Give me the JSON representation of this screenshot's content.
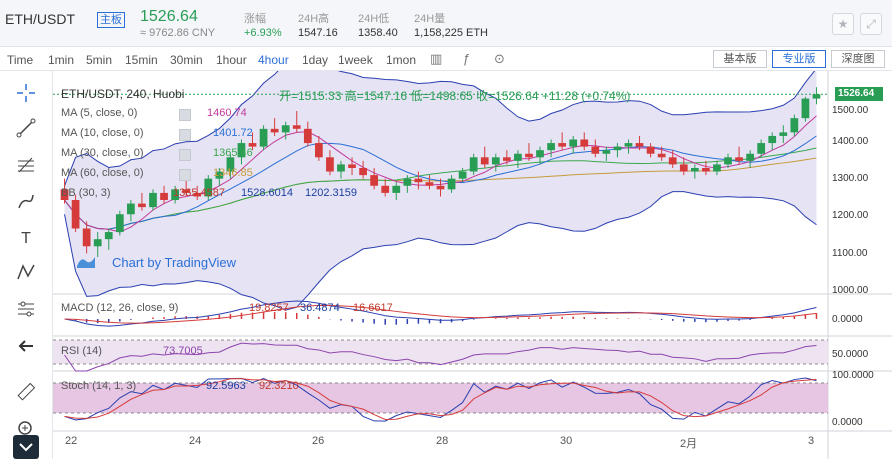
{
  "header": {
    "pair": "ETH/USDT",
    "tag": "主板",
    "price": "1526.64",
    "cny": "≈ 9762.86 CNY",
    "stats": [
      {
        "label": "涨幅",
        "value": "+6.93%"
      },
      {
        "label": "24H高",
        "value": "1547.16"
      },
      {
        "label": "24H低",
        "value": "1358.40"
      },
      {
        "label": "24H量",
        "value": "1,158,225 ETH"
      }
    ],
    "icons": [
      "star-icon",
      "fullscreen-icon"
    ]
  },
  "toolbar": {
    "time_label": "Time",
    "intervals": [
      "1min",
      "5min",
      "15min",
      "30min",
      "1hour",
      "4hour",
      "1day",
      "1week",
      "1mon"
    ],
    "active_interval": "4hour",
    "views": [
      "基本版",
      "专业版",
      "深度图"
    ],
    "active_view": "专业版"
  },
  "left_tools": [
    "crosshair-icon",
    "trendline-icon",
    "fib-icon",
    "brush-icon",
    "text-icon",
    "pattern-icon",
    "measure-icon",
    "back-arrow-icon",
    "ruler-icon",
    "zoom-in-icon"
  ],
  "legend": {
    "main": "ETH/USDT, 240, Huobi",
    "ohlc": "开=1515.33  高=1547.16  低=1498.65  收=1526.64  +11.28 (+0.74%)",
    "ma5": {
      "label": "MA (5, close, 0)",
      "value": "1460.74",
      "color": "#c0399b"
    },
    "ma10": {
      "label": "MA (10, close, 0)",
      "value": "1401.72",
      "color": "#2a6fd6"
    },
    "ma30": {
      "label": "MA (30, close, 0)",
      "value": "1365.46",
      "color": "#3aa84e"
    },
    "ma60": {
      "label": "MA (60, close, 0)",
      "value": "1346.85",
      "color": "#c79a3a"
    },
    "bb": {
      "label": "BB (30, 3)",
      "v1": "1365.4587",
      "v2": "1528.6014",
      "v3": "1202.3159"
    },
    "watermark": "Chart by TradingView"
  },
  "macd": {
    "label": "MACD (12, 26, close, 9)",
    "v1": "19.8257",
    "v2": "36.4874",
    "v3": "16.6617"
  },
  "rsi": {
    "label": "RSI (14)",
    "v1": "73.7005"
  },
  "stoch": {
    "label": "Stoch (14, 1, 3)",
    "v1": "92.5963",
    "v2": "92.3210"
  },
  "axis": {
    "price_ticks": [
      "1500.00",
      "1400.00",
      "1300.00",
      "1200.00",
      "1100.00",
      "1000.00"
    ],
    "last_price": "1526.64",
    "macd_tick": "0.0000",
    "rsi_tick": "50.0000",
    "stoch_ticks": [
      "100.0000",
      "0.0000"
    ],
    "x_ticks": [
      "22",
      "24",
      "26",
      "28",
      "30",
      "2月",
      "3"
    ]
  },
  "chart_data": {
    "type": "candlestick",
    "symbol": "ETH/USDT",
    "interval": "240",
    "exchange": "Huobi",
    "ylim": [
      980,
      1570
    ],
    "candles": [
      [
        1260,
        1290,
        1220,
        1230
      ],
      [
        1230,
        1245,
        1140,
        1150
      ],
      [
        1150,
        1170,
        1080,
        1100
      ],
      [
        1100,
        1140,
        1070,
        1120
      ],
      [
        1120,
        1150,
        1090,
        1140
      ],
      [
        1140,
        1200,
        1130,
        1190
      ],
      [
        1190,
        1230,
        1170,
        1220
      ],
      [
        1220,
        1250,
        1200,
        1210
      ],
      [
        1210,
        1260,
        1200,
        1250
      ],
      [
        1250,
        1270,
        1220,
        1230
      ],
      [
        1230,
        1270,
        1220,
        1260
      ],
      [
        1260,
        1290,
        1240,
        1250
      ],
      [
        1250,
        1270,
        1230,
        1240
      ],
      [
        1240,
        1300,
        1230,
        1290
      ],
      [
        1290,
        1320,
        1270,
        1310
      ],
      [
        1310,
        1360,
        1290,
        1350
      ],
      [
        1350,
        1400,
        1330,
        1390
      ],
      [
        1390,
        1420,
        1370,
        1380
      ],
      [
        1380,
        1440,
        1370,
        1430
      ],
      [
        1430,
        1460,
        1410,
        1420
      ],
      [
        1420,
        1450,
        1400,
        1440
      ],
      [
        1440,
        1480,
        1420,
        1430
      ],
      [
        1430,
        1450,
        1380,
        1390
      ],
      [
        1390,
        1410,
        1340,
        1350
      ],
      [
        1350,
        1370,
        1300,
        1310
      ],
      [
        1310,
        1340,
        1290,
        1330
      ],
      [
        1330,
        1350,
        1300,
        1320
      ],
      [
        1320,
        1340,
        1290,
        1300
      ],
      [
        1300,
        1320,
        1260,
        1270
      ],
      [
        1270,
        1290,
        1240,
        1250
      ],
      [
        1250,
        1280,
        1230,
        1270
      ],
      [
        1270,
        1300,
        1250,
        1290
      ],
      [
        1290,
        1310,
        1260,
        1280
      ],
      [
        1280,
        1300,
        1260,
        1270
      ],
      [
        1270,
        1290,
        1240,
        1260
      ],
      [
        1260,
        1300,
        1250,
        1290
      ],
      [
        1290,
        1320,
        1280,
        1310
      ],
      [
        1310,
        1360,
        1300,
        1350
      ],
      [
        1350,
        1380,
        1320,
        1330
      ],
      [
        1330,
        1360,
        1310,
        1350
      ],
      [
        1350,
        1370,
        1330,
        1340
      ],
      [
        1340,
        1370,
        1320,
        1360
      ],
      [
        1360,
        1390,
        1340,
        1350
      ],
      [
        1350,
        1380,
        1330,
        1370
      ],
      [
        1370,
        1400,
        1350,
        1390
      ],
      [
        1390,
        1420,
        1370,
        1380
      ],
      [
        1380,
        1410,
        1360,
        1400
      ],
      [
        1400,
        1420,
        1370,
        1380
      ],
      [
        1380,
        1400,
        1350,
        1360
      ],
      [
        1360,
        1380,
        1340,
        1370
      ],
      [
        1370,
        1390,
        1350,
        1380
      ],
      [
        1380,
        1400,
        1360,
        1390
      ],
      [
        1390,
        1410,
        1370,
        1380
      ],
      [
        1380,
        1390,
        1350,
        1360
      ],
      [
        1360,
        1380,
        1340,
        1350
      ],
      [
        1350,
        1370,
        1320,
        1330
      ],
      [
        1330,
        1350,
        1300,
        1310
      ],
      [
        1310,
        1330,
        1290,
        1320
      ],
      [
        1320,
        1340,
        1300,
        1310
      ],
      [
        1310,
        1340,
        1300,
        1330
      ],
      [
        1330,
        1360,
        1320,
        1350
      ],
      [
        1350,
        1380,
        1330,
        1340
      ],
      [
        1340,
        1370,
        1320,
        1360
      ],
      [
        1360,
        1400,
        1350,
        1390
      ],
      [
        1390,
        1420,
        1370,
        1410
      ],
      [
        1410,
        1440,
        1390,
        1420
      ],
      [
        1420,
        1470,
        1410,
        1460
      ],
      [
        1460,
        1520,
        1450,
        1515
      ],
      [
        1515,
        1547,
        1499,
        1527
      ]
    ]
  }
}
